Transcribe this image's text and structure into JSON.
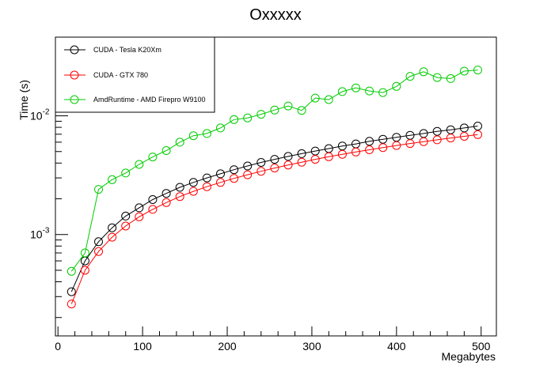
{
  "chart_data": {
    "type": "line",
    "title": "Oxxxxx",
    "xlabel": "Megabytes",
    "ylabel": "Time (s)",
    "x_scale": "linear",
    "y_scale": "log",
    "xlim": [
      -3,
      518
    ],
    "ylim": [
      0.00014,
      0.046
    ],
    "x_ticks": [
      "0",
      "100",
      "200",
      "300",
      "400",
      "500"
    ],
    "y_ticks": [
      {
        "base": "10",
        "exponent": "-3",
        "value": 0.001
      },
      {
        "base": "10",
        "exponent": "-2",
        "value": 0.01
      }
    ],
    "grid": false,
    "legend_position": "top-left",
    "marker": "open-circle",
    "x": [
      16,
      32,
      48,
      64,
      80,
      96,
      112,
      128,
      144,
      160,
      176,
      192,
      208,
      224,
      240,
      256,
      272,
      288,
      304,
      320,
      336,
      352,
      368,
      384,
      400,
      416,
      432,
      448,
      464,
      480,
      496
    ],
    "series": [
      {
        "name": "CUDA - Tesla K20Xm",
        "color": "#000000",
        "values": [
          0.00033,
          0.0006,
          0.00087,
          0.00114,
          0.00143,
          0.00168,
          0.00197,
          0.00222,
          0.0025,
          0.00275,
          0.003,
          0.00325,
          0.00352,
          0.00378,
          0.00405,
          0.0043,
          0.00455,
          0.0048,
          0.00505,
          0.0053,
          0.00557,
          0.0058,
          0.0061,
          0.00635,
          0.0066,
          0.00685,
          0.0071,
          0.0074,
          0.00763,
          0.0079,
          0.0082
        ]
      },
      {
        "name": "CUDA - GTX 780",
        "color": "#ff0000",
        "values": [
          0.00026,
          0.0005,
          0.00072,
          0.00095,
          0.00118,
          0.00141,
          0.00163,
          0.00186,
          0.00209,
          0.00231,
          0.00253,
          0.00275,
          0.00297,
          0.00319,
          0.00341,
          0.00363,
          0.00385,
          0.00407,
          0.0043,
          0.00452,
          0.00474,
          0.00496,
          0.00518,
          0.0054,
          0.00562,
          0.00584,
          0.00606,
          0.00628,
          0.0065,
          0.00672,
          0.00695
        ]
      },
      {
        "name": "AmdRuntime - AMD Firepro W9100",
        "color": "#00cc00",
        "values": [
          0.00049,
          0.0007,
          0.0024,
          0.0029,
          0.0033,
          0.0039,
          0.0045,
          0.0051,
          0.006,
          0.0068,
          0.0071,
          0.0079,
          0.0093,
          0.0096,
          0.0103,
          0.0112,
          0.0121,
          0.0111,
          0.0141,
          0.0137,
          0.016,
          0.0172,
          0.0162,
          0.0157,
          0.0177,
          0.0215,
          0.0235,
          0.021,
          0.0206,
          0.0238,
          0.0243
        ]
      }
    ]
  }
}
